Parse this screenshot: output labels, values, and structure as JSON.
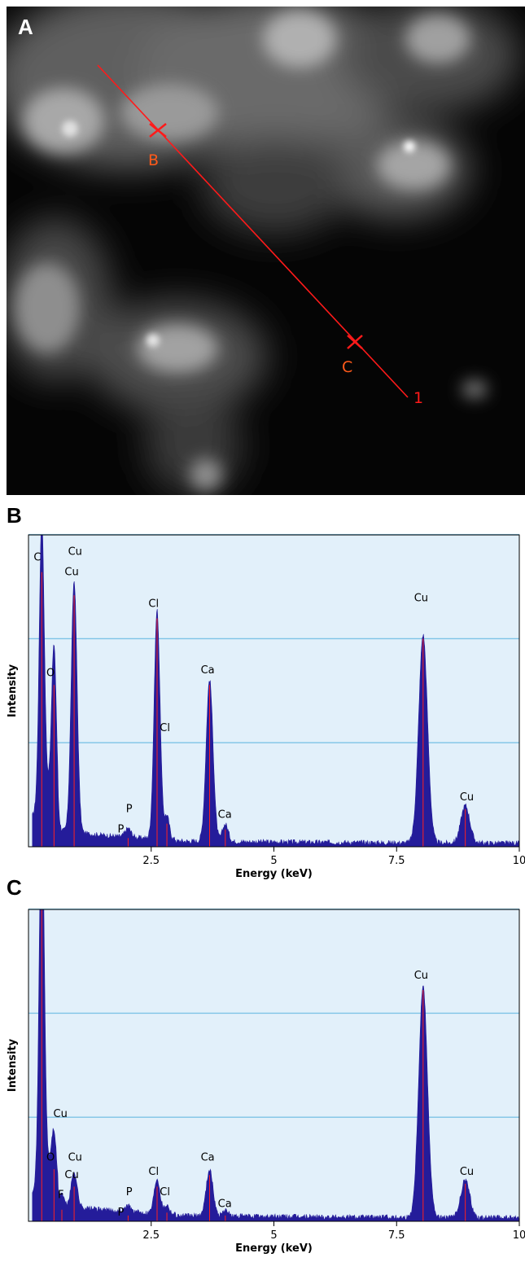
{
  "panel_a": {
    "label": "A",
    "scan_line_label": "1",
    "point_b_label": "B",
    "point_c_label": "C",
    "marker_color": "#ff1a1a",
    "point_label_color": "#ff5a1a"
  },
  "chart_data": [
    {
      "type": "line",
      "panel_label": "B",
      "xlabel": "Energy (keV)",
      "ylabel": "Intensity",
      "xlim": [
        0,
        10
      ],
      "ylim": [
        0,
        100
      ],
      "x_ticks": [
        2.5,
        5,
        7.5,
        10
      ],
      "x_tick_labels": [
        "2.5",
        "5",
        "7.5",
        "10"
      ],
      "y_gridlines": [
        36,
        72,
        108
      ],
      "grid": true,
      "background": "#e2f0fa",
      "fill_color": "#241c9a",
      "peak_line_color": "#ff2020",
      "peaks": [
        {
          "x": 0.27,
          "y": 95,
          "w": 0.05
        },
        {
          "x": 0.52,
          "y": 56,
          "w": 0.05
        },
        {
          "x": 0.93,
          "y": 87,
          "w": 0.06
        },
        {
          "x": 2.03,
          "y": 3,
          "w": 0.06
        },
        {
          "x": 2.62,
          "y": 79,
          "w": 0.06
        },
        {
          "x": 2.82,
          "y": 8,
          "w": 0.05
        },
        {
          "x": 3.69,
          "y": 56,
          "w": 0.07
        },
        {
          "x": 4.01,
          "y": 6,
          "w": 0.06
        },
        {
          "x": 8.04,
          "y": 72,
          "w": 0.09
        },
        {
          "x": 8.9,
          "y": 13,
          "w": 0.09
        }
      ],
      "annotations": [
        {
          "text": "Cu",
          "x": 0.65,
          "y": 113
        },
        {
          "text": "C",
          "x": 0.18,
          "y": 99
        },
        {
          "text": "Cu",
          "x": 0.95,
          "y": 101
        },
        {
          "text": "Cu",
          "x": 0.88,
          "y": 94
        },
        {
          "text": "O",
          "x": 0.45,
          "y": 59
        },
        {
          "text": "Cl",
          "x": 2.55,
          "y": 83
        },
        {
          "text": "Cl",
          "x": 2.78,
          "y": 40
        },
        {
          "text": "Ca",
          "x": 3.65,
          "y": 60
        },
        {
          "text": "P",
          "x": 2.05,
          "y": 12
        },
        {
          "text": "P",
          "x": 1.88,
          "y": 5
        },
        {
          "text": "Ca",
          "x": 4.0,
          "y": 10
        },
        {
          "text": "Cu",
          "x": 8.0,
          "y": 85
        },
        {
          "text": "Cu",
          "x": 8.93,
          "y": 16
        }
      ]
    },
    {
      "type": "line",
      "panel_label": "C",
      "xlabel": "Energy (keV)",
      "ylabel": "Intensity",
      "xlim": [
        0,
        10
      ],
      "ylim": [
        0,
        100
      ],
      "x_ticks": [
        2.5,
        5,
        7.5,
        10
      ],
      "x_tick_labels": [
        "2.5",
        "5",
        "7.5",
        "10"
      ],
      "y_gridlines": [
        36,
        72,
        108
      ],
      "grid": true,
      "background": "#e2f0fa",
      "fill_color": "#241c9a",
      "peak_line_color": "#ff2020",
      "peaks": [
        {
          "x": 0.27,
          "y": 128,
          "w": 0.05
        },
        {
          "x": 0.52,
          "y": 18,
          "w": 0.05
        },
        {
          "x": 0.68,
          "y": 4,
          "w": 0.04
        },
        {
          "x": 0.93,
          "y": 12,
          "w": 0.06
        },
        {
          "x": 2.03,
          "y": 2,
          "w": 0.06
        },
        {
          "x": 2.62,
          "y": 12,
          "w": 0.06
        },
        {
          "x": 2.82,
          "y": 3,
          "w": 0.05
        },
        {
          "x": 3.69,
          "y": 16,
          "w": 0.07
        },
        {
          "x": 4.01,
          "y": 2,
          "w": 0.06
        },
        {
          "x": 8.04,
          "y": 80,
          "w": 0.09
        },
        {
          "x": 8.9,
          "y": 13,
          "w": 0.09
        }
      ],
      "annotations": [
        {
          "text": "Cu",
          "x": 0.65,
          "y": 36
        },
        {
          "text": "O",
          "x": 0.45,
          "y": 21
        },
        {
          "text": "Cu",
          "x": 0.95,
          "y": 21
        },
        {
          "text": "Cu",
          "x": 0.88,
          "y": 15
        },
        {
          "text": "F",
          "x": 0.66,
          "y": 8
        },
        {
          "text": "Cl",
          "x": 2.55,
          "y": 16
        },
        {
          "text": "Cl",
          "x": 2.78,
          "y": 9
        },
        {
          "text": "Ca",
          "x": 3.65,
          "y": 21
        },
        {
          "text": "P",
          "x": 2.05,
          "y": 9
        },
        {
          "text": "P",
          "x": 1.88,
          "y": 2
        },
        {
          "text": "Ca",
          "x": 4.0,
          "y": 5
        },
        {
          "text": "Cu",
          "x": 8.0,
          "y": 84
        },
        {
          "text": "Cu",
          "x": 8.93,
          "y": 16
        }
      ]
    }
  ]
}
